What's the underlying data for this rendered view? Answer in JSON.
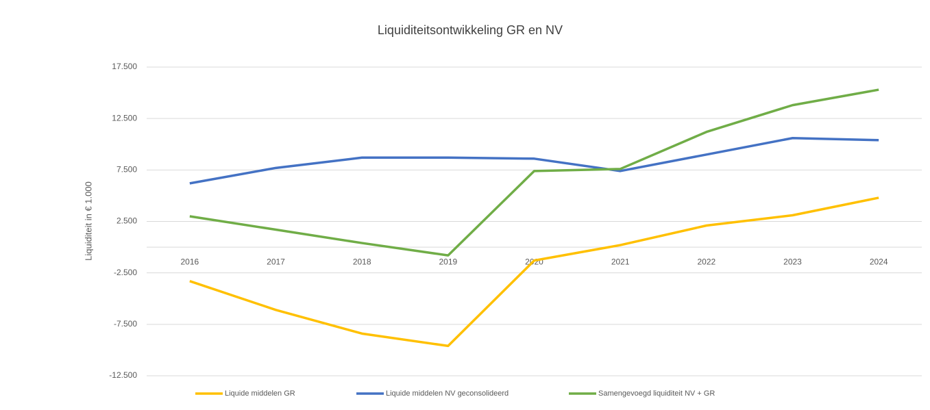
{
  "chart_data": {
    "type": "line",
    "title": "Liquiditeitsontwikkeling GR en NV",
    "y_label": "Liquiditeit in € 1.000",
    "categories": [
      "2016",
      "2017",
      "2018",
      "2019",
      "2020",
      "2021",
      "2022",
      "2023",
      "2024"
    ],
    "series": [
      {
        "name": "Liquide middelen GR",
        "color": "#ffc000",
        "values": [
          -3300,
          -6100,
          -8400,
          -9600,
          -1300,
          200,
          2100,
          3100,
          4800
        ]
      },
      {
        "name": "Liquide middelen NV geconsolideerd",
        "color": "#4472c4",
        "values": [
          6200,
          7700,
          8700,
          8700,
          8600,
          7400,
          9000,
          10600,
          10400
        ]
      },
      {
        "name": "Samengevoegd liquiditeit NV + GR",
        "color": "#70ad47",
        "values": [
          3000,
          1700,
          400,
          -800,
          7400,
          7600,
          11200,
          13800,
          15300
        ]
      }
    ],
    "ylim": [
      -12500,
      17500
    ],
    "yticks": [
      {
        "value": -12500,
        "label": "-12.500"
      },
      {
        "value": -7500,
        "label": "-7.500"
      },
      {
        "value": -2500,
        "label": "-2.500"
      },
      {
        "value": 2500,
        "label": "2.500"
      },
      {
        "value": 7500,
        "label": "7.500"
      },
      {
        "value": 12500,
        "label": "12.500"
      },
      {
        "value": 17500,
        "label": "17.500"
      }
    ],
    "grid": true,
    "legend": "bottom"
  }
}
